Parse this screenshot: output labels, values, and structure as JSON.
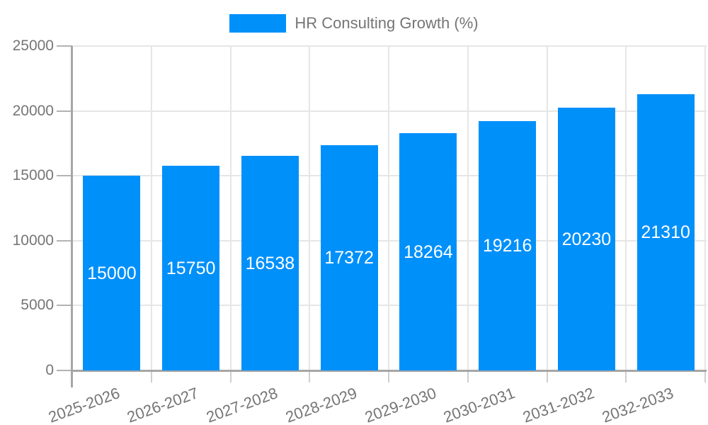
{
  "legend": {
    "label": "HR Consulting Growth (%)"
  },
  "colors": {
    "bar": "#0090fa",
    "bar_label_text": "#ffffff",
    "axis_text": "#757575",
    "legend_text": "#757575",
    "grid_line": "#e6e6e6",
    "axis_line": "#a6a6a6",
    "y_tick": "#b3b3b3",
    "x_tick": "#cfcfcf",
    "background": "#ffffff"
  },
  "chart_data": {
    "type": "bar",
    "title": "HR Consulting Growth (%)",
    "categories": [
      "2025-2026",
      "2026-2027",
      "2027-2028",
      "2028-2029",
      "2029-2030",
      "2030-2031",
      "2031-2032",
      "2032-2033"
    ],
    "series": [
      {
        "name": "HR Consulting Growth (%)",
        "values": [
          15000,
          15750,
          16538,
          17372,
          18264,
          19216,
          20230,
          21310
        ]
      }
    ],
    "bar_labels": [
      "15000",
      "15750",
      "16538",
      "17372",
      "18264",
      "19216",
      "20230",
      "21310"
    ],
    "y_ticks": [
      0,
      5000,
      10000,
      15000,
      20000,
      25000
    ],
    "y_tick_labels": [
      "0",
      "5000",
      "10000",
      "15000",
      "20000",
      "25000"
    ],
    "ylim": [
      0,
      25000
    ],
    "xlabel": "",
    "ylabel": "",
    "grid": true,
    "legend_position": "top",
    "x_tick_rotation_deg": -20
  }
}
